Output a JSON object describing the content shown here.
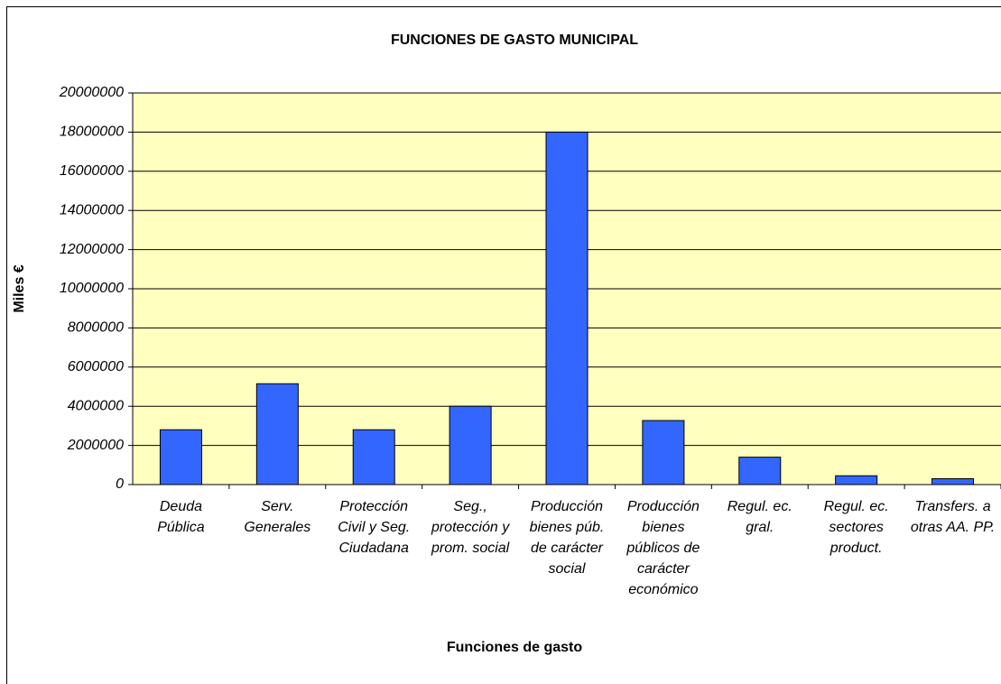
{
  "chart_data": {
    "type": "bar",
    "title": "FUNCIONES DE GASTO MUNICIPAL",
    "x_label": "Funciones de gasto",
    "y_label": "Miles €",
    "categories": [
      "Deuda Pública",
      "Serv. Generales",
      "Protección Civil y Seg. Ciudadana",
      "Seg., protección y prom. social",
      "Producción bienes púb. de carácter social",
      "Producción bienes públicos de carácter económico",
      "Regul. ec. gral.",
      "Regul. ec. sectores product.",
      "Transfers. a otras AA. PP."
    ],
    "values": [
      2800000,
      5150000,
      2800000,
      4000000,
      18000000,
      3270000,
      1400000,
      450000,
      300000
    ],
    "color": "#3366ff",
    "ylim": [
      0,
      20000000
    ],
    "yticks": [
      0,
      2000000,
      4000000,
      6000000,
      8000000,
      10000000,
      12000000,
      14000000,
      16000000,
      18000000,
      20000000
    ],
    "grid": true
  }
}
